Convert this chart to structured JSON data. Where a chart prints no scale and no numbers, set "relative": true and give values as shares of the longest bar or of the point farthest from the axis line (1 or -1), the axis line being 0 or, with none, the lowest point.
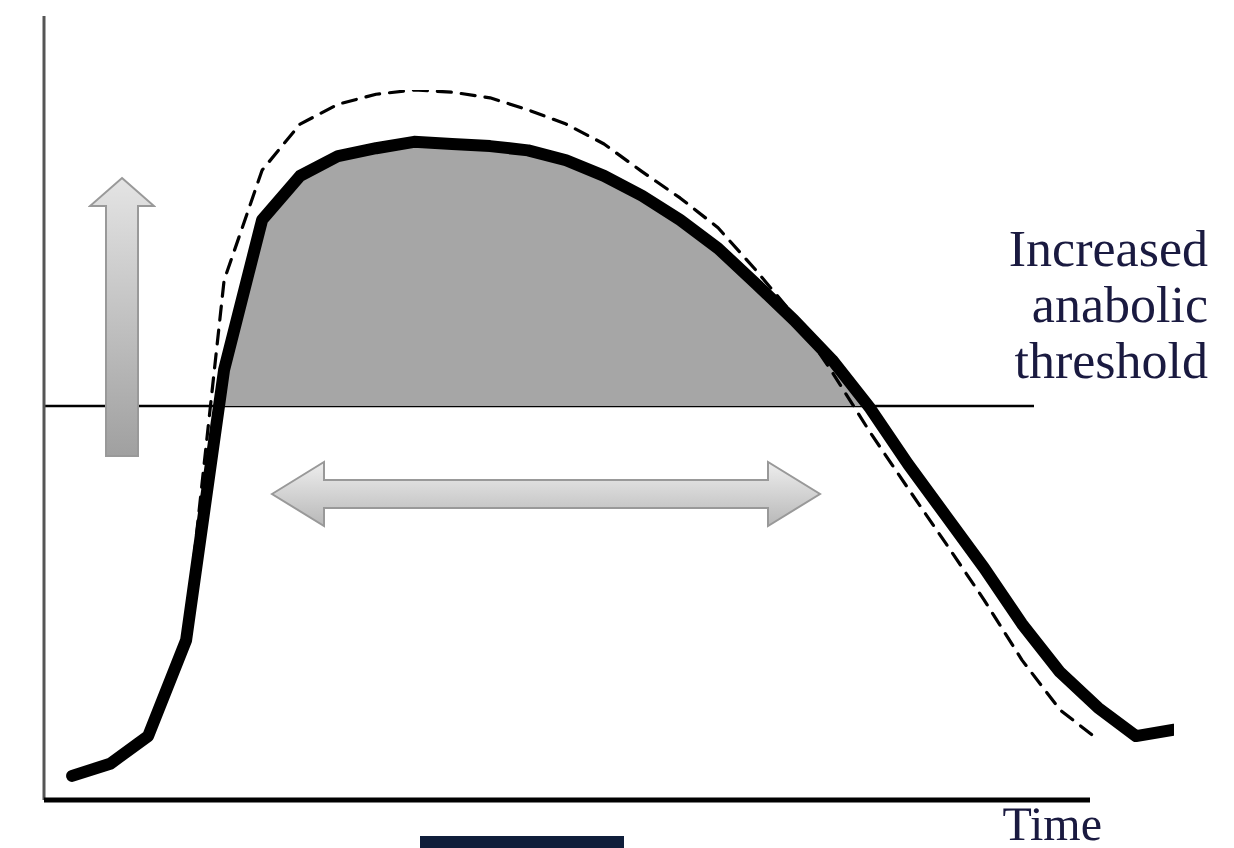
{
  "chart_data": {
    "type": "line",
    "relative": true,
    "xlabel": "Time",
    "legend": false,
    "marker": "none",
    "categories": [
      null,
      null,
      null,
      null,
      null,
      null,
      null,
      null,
      null,
      null,
      null,
      null,
      null,
      null,
      null,
      null,
      null,
      null,
      null,
      null,
      null,
      null,
      null,
      null,
      null,
      null,
      null,
      null,
      null,
      null
    ],
    "series": [
      {
        "color": "#000000",
        "line_style": "solid",
        "values": [
          0.034,
          0.051,
          0.09,
          0.225,
          0.606,
          0.817,
          0.879,
          0.907,
          0.918,
          0.927,
          0.924,
          0.921,
          0.915,
          0.901,
          0.879,
          0.851,
          0.817,
          0.777,
          0.727,
          0.676,
          0.62,
          0.552,
          0.473,
          0.4,
          0.327,
          0.248,
          0.18,
          0.13,
          0.09,
          0.099
        ]
      },
      {
        "color": "#000000",
        "line_style": "dashed",
        "values": [
          null,
          null,
          null,
          0.239,
          0.732,
          0.887,
          0.952,
          0.98,
          0.994,
          1,
          0.997,
          0.989,
          0.972,
          0.952,
          0.924,
          0.885,
          0.848,
          0.806,
          0.746,
          0.682,
          0.603,
          0.518,
          0.439,
          0.361,
          0.282,
          0.197,
          0.127,
          0.085,
          null,
          null
        ]
      }
    ],
    "ref_lines": [
      {
        "axis": "y",
        "value": 0.555,
        "label": "Increased anabolic threshold",
        "color": "#000000"
      }
    ]
  }
}
